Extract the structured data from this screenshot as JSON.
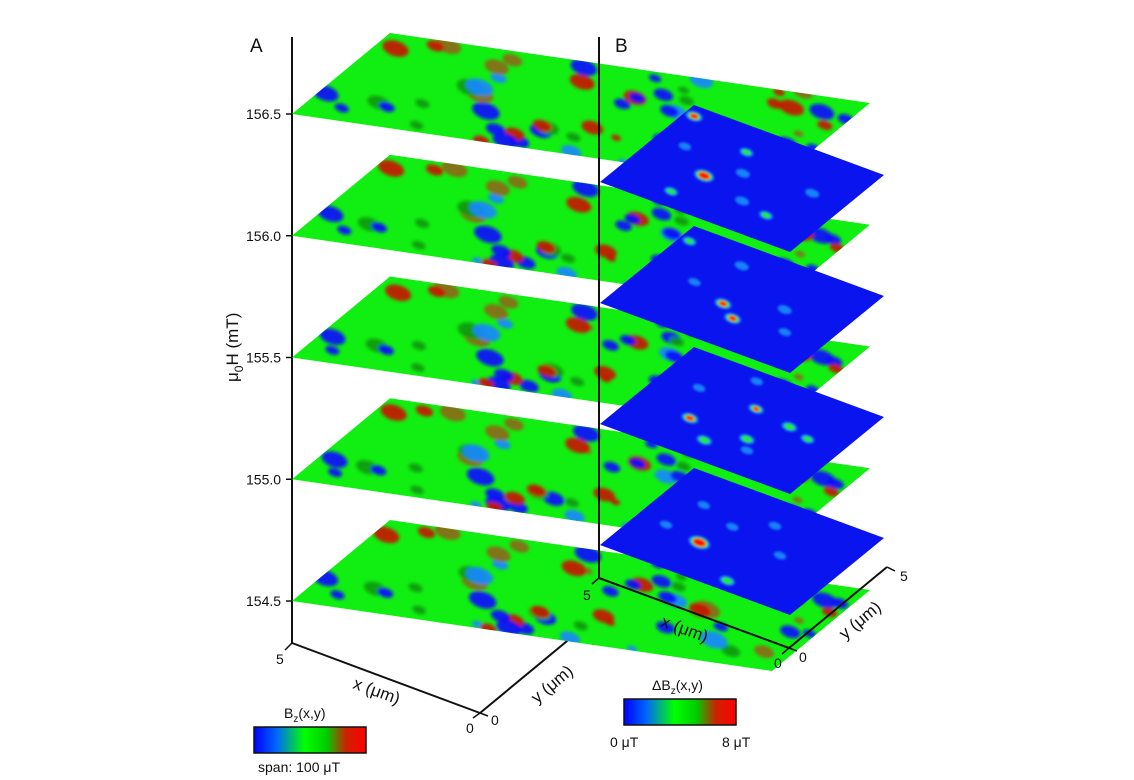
{
  "chart_data": [
    {
      "type": "heatmap",
      "panel_label": "A",
      "description": "stacked 2D maps of B_z(x,y) at applied field values",
      "z_axis": {
        "label_main": "μ",
        "label_sub": "0",
        "label_rest": "H (mT)",
        "ticks": [
          "154.5",
          "155.0",
          "155.5",
          "156.0",
          "156.5"
        ],
        "values": [
          154.5,
          155.0,
          155.5,
          156.0,
          156.5
        ]
      },
      "x_axis": {
        "label": "x (μm)",
        "tick_min": "0",
        "tick_max": "5",
        "range": [
          0,
          5
        ]
      },
      "y_axis": {
        "label": "y (μm)",
        "tick_min": "0",
        "tick_max": "5",
        "range": [
          0,
          5
        ]
      },
      "colorbar": {
        "title_main": "B",
        "title_sub": "z",
        "title_rest": "(x,y)",
        "caption": "span: 100 μT",
        "colors": [
          "#0000ff",
          "#0066ff",
          "#00ff00",
          "#00cc00",
          "#cc2200",
          "#ff0000"
        ]
      },
      "slices": [
        {
          "field": 154.5,
          "background": "#11ee11"
        },
        {
          "field": 155.0,
          "background": "#11ee11"
        },
        {
          "field": 155.5,
          "background": "#11ee11"
        },
        {
          "field": 156.0,
          "background": "#11ee11"
        },
        {
          "field": 156.5,
          "background": "#11ee11"
        }
      ]
    },
    {
      "type": "heatmap",
      "panel_label": "B",
      "description": "stacked 2D maps of difference field ΔB_z(x,y)",
      "x_axis": {
        "label": "x (μm)",
        "tick_min": "0",
        "tick_max": "5",
        "range": [
          0,
          5
        ]
      },
      "y_axis": {
        "label": "y (μm)",
        "tick_min": "0",
        "tick_max": "5",
        "range": [
          0,
          5
        ]
      },
      "colorbar": {
        "title_main": "ΔB",
        "title_sub": "z",
        "title_rest": "(x,y)",
        "min_label": "0 μT",
        "max_label": "8 μT",
        "range": [
          0,
          8
        ],
        "colors": [
          "#0000ff",
          "#0066ff",
          "#00ff00",
          "#00cc00",
          "#cc2200",
          "#ff0000"
        ]
      },
      "slices": [
        {
          "index": 1,
          "background": "#0a14ee"
        },
        {
          "index": 2,
          "background": "#0a14ee"
        },
        {
          "index": 3,
          "background": "#0a14ee"
        },
        {
          "index": 4,
          "background": "#0a14ee"
        }
      ]
    }
  ]
}
